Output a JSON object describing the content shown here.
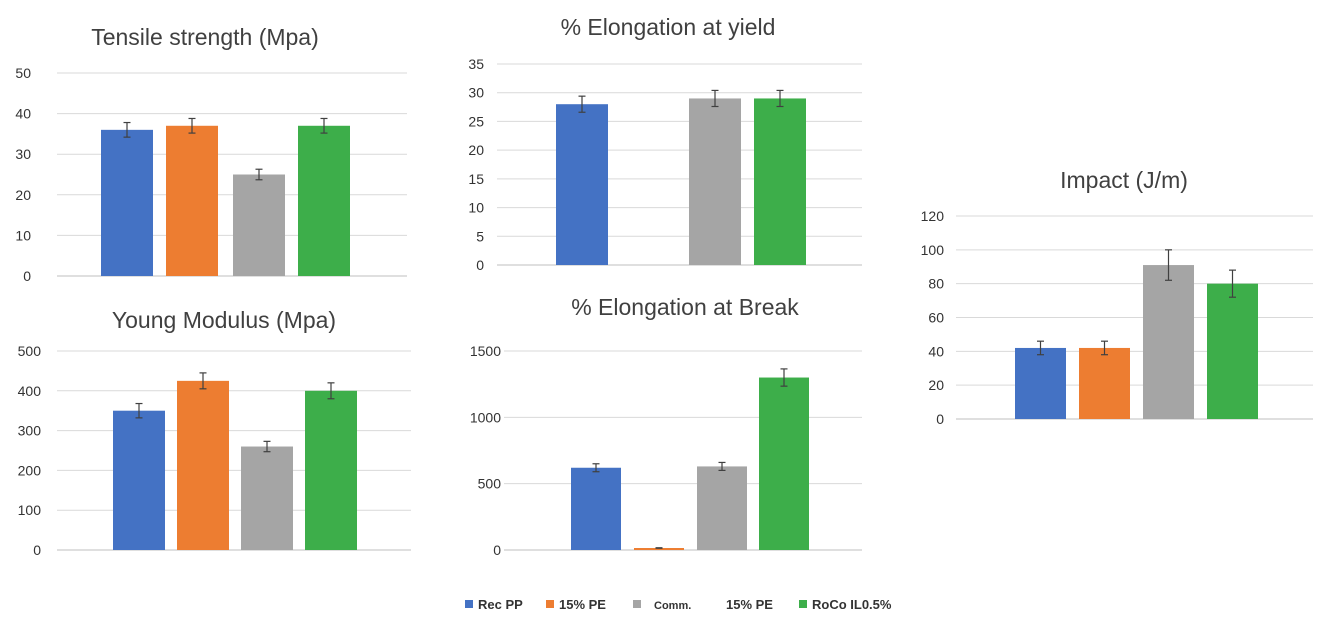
{
  "colors": {
    "Rec PP": "#4472C4",
    "15% PE": "#ED7D31",
    "Comm. 15% PE": "#A5A5A5",
    "RoCo IL0.5%": "#3DAE4A",
    "grid": "#D9D9D9",
    "error": "#404040"
  },
  "legend": [
    {
      "label": "Rec PP",
      "color": "#4472C4"
    },
    {
      "label": "15% PE",
      "color": "#ED7D31"
    },
    {
      "label": "Comm.",
      "color": "#A5A5A5",
      "suffix": "15% PE"
    },
    {
      "label": "RoCo IL0.5%",
      "color": "#3DAE4A"
    }
  ],
  "chart_data": [
    {
      "id": "tensile",
      "type": "bar",
      "title": "Tensile strength (Mpa)",
      "series": [
        "Rec PP",
        "15% PE",
        "Comm. 15% PE",
        "RoCo IL0.5%"
      ],
      "values": [
        36,
        37,
        25,
        37
      ],
      "errors": [
        1.8,
        1.8,
        1.3,
        1.8
      ],
      "ylim": [
        0,
        50
      ],
      "yticks": [
        0,
        10,
        20,
        30,
        40,
        50
      ],
      "grid": true
    },
    {
      "id": "young",
      "type": "bar",
      "title": "Young Modulus (Mpa)",
      "series": [
        "Rec PP",
        "15% PE",
        "Comm. 15% PE",
        "RoCo IL0.5%"
      ],
      "values": [
        350,
        425,
        260,
        400
      ],
      "errors": [
        18,
        20,
        13,
        20
      ],
      "ylim": [
        0,
        500
      ],
      "yticks": [
        0,
        100,
        200,
        300,
        400,
        500
      ],
      "grid": true
    },
    {
      "id": "elong_yield",
      "type": "bar",
      "title": "% Elongation at yield",
      "series": [
        "Rec PP",
        "15% PE",
        "Comm. 15% PE",
        "RoCo IL0.5%"
      ],
      "values": [
        28,
        null,
        29,
        29
      ],
      "errors": [
        1.4,
        null,
        1.4,
        1.4
      ],
      "ylim": [
        0,
        35
      ],
      "yticks": [
        0,
        5,
        10,
        15,
        20,
        25,
        30,
        35
      ],
      "grid": true
    },
    {
      "id": "elong_break",
      "type": "bar",
      "title": "% Elongation at Break",
      "series": [
        "Rec PP",
        "15% PE",
        "Comm. 15% PE",
        "RoCo IL0.5%"
      ],
      "values": [
        620,
        15,
        630,
        1300
      ],
      "errors": [
        30,
        2,
        30,
        65
      ],
      "ylim": [
        0,
        1500
      ],
      "yticks": [
        0,
        500,
        1000,
        1500
      ],
      "grid": true
    },
    {
      "id": "impact",
      "type": "bar",
      "title": "Impact (J/m)",
      "series": [
        "Rec PP",
        "15% PE",
        "Comm. 15% PE",
        "RoCo IL0.5%"
      ],
      "values": [
        42,
        42,
        91,
        80
      ],
      "errors": [
        4,
        4,
        9,
        8
      ],
      "ylim": [
        0,
        120
      ],
      "yticks": [
        0,
        20,
        40,
        60,
        80,
        100,
        120
      ],
      "grid": true
    }
  ]
}
